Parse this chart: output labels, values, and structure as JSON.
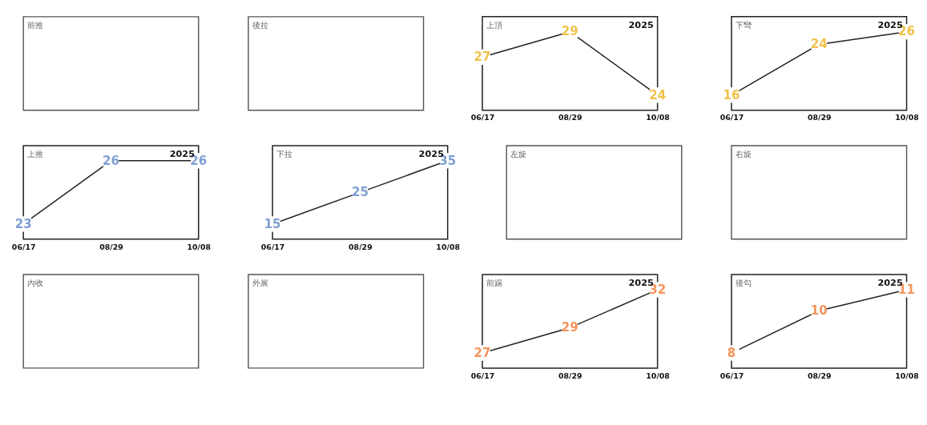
{
  "chart_data": [
    {
      "type": "other",
      "title": "前推"
    },
    {
      "type": "other",
      "title": "後拉"
    },
    {
      "type": "line",
      "title": "上頂",
      "annotations": [
        "2025"
      ],
      "categories": [
        "06/17",
        "08/29",
        "10/08"
      ],
      "data_labels": true,
      "series": [
        {
          "color": "#222222",
          "marker": "square",
          "colors": [
            "#f0c24b",
            "#f0c24b",
            "#f0c24b"
          ],
          "values": [
            27,
            29,
            24
          ]
        }
      ]
    },
    {
      "type": "line",
      "title": "下彎",
      "annotations": [
        "2025"
      ],
      "categories": [
        "06/17",
        "08/29",
        "10/08"
      ],
      "data_labels": true,
      "series": [
        {
          "color": "#222222",
          "marker": "square",
          "colors": [
            "#f0c24b",
            "#f0c24b",
            "#f0c24b"
          ],
          "values": [
            16,
            24,
            26
          ]
        }
      ]
    },
    {
      "type": "line",
      "title": "上推",
      "annotations": [
        "2025"
      ],
      "categories": [
        "06/17",
        "08/29",
        "10/08"
      ],
      "data_labels": true,
      "series": [
        {
          "color": "#222222",
          "marker": "square",
          "colors": [
            "#7f9fd4",
            "#7f9fd4",
            "#7f9fd4"
          ],
          "values": [
            23,
            26,
            26
          ]
        }
      ]
    },
    {
      "type": "line",
      "title": "下拉",
      "annotations": [
        "2025"
      ],
      "categories": [
        "06/17",
        "08/29",
        "10/08"
      ],
      "data_labels": true,
      "series": [
        {
          "color": "#222222",
          "marker": "square",
          "colors": [
            "#7f9fd4",
            "#7f9fd4",
            "#7f9fd4"
          ],
          "values": [
            15,
            25,
            35
          ]
        }
      ]
    },
    {
      "type": "other",
      "title": "左旋"
    },
    {
      "type": "other",
      "title": "右旋"
    },
    {
      "type": "other",
      "title": "內收"
    },
    {
      "type": "other",
      "title": "外展"
    },
    {
      "type": "line",
      "title": "前踢",
      "annotations": [
        "2025"
      ],
      "categories": [
        "06/17",
        "08/29",
        "10/08"
      ],
      "data_labels": true,
      "series": [
        {
          "color": "#222222",
          "marker": "square",
          "colors": [
            "#f4945c",
            "#f4945c",
            "#f4945c"
          ],
          "values": [
            27,
            29,
            32
          ]
        }
      ]
    },
    {
      "type": "line",
      "title": "後勾",
      "annotations": [
        "2025"
      ],
      "categories": [
        "06/17",
        "08/29",
        "10/08"
      ],
      "data_labels": true,
      "series": [
        {
          "color": "#222222",
          "marker": "square",
          "colors": [
            "#f4945c",
            "#f4945c",
            "#f4945c"
          ],
          "values": [
            8,
            10,
            11
          ]
        }
      ]
    }
  ]
}
